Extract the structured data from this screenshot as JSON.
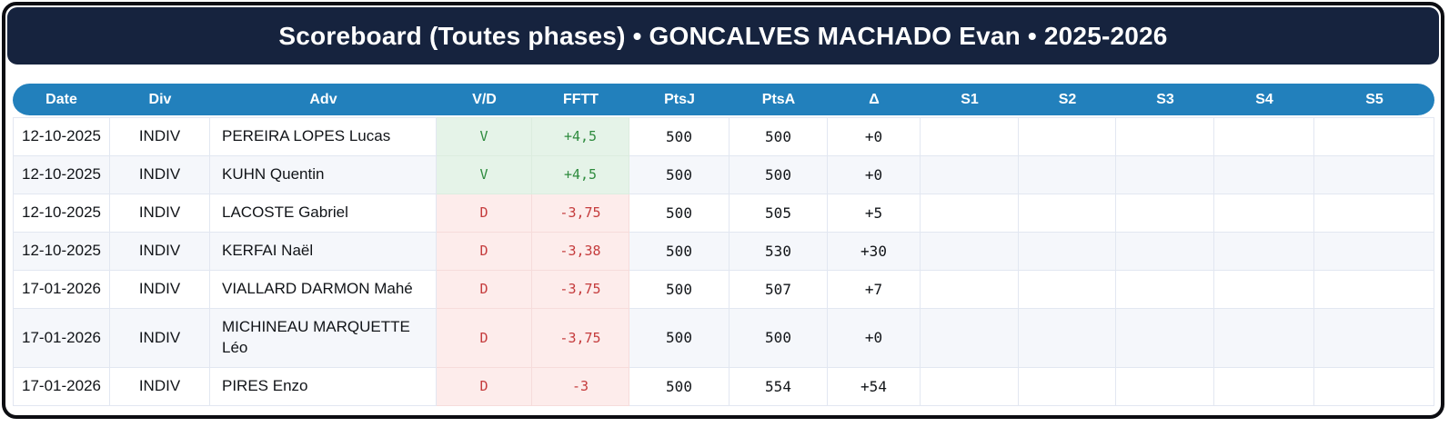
{
  "title": "Scoreboard (Toutes phases) • GONCALVES MACHADO Evan • 2025-2026",
  "colors": {
    "title_bar_bg": "#16233e",
    "header_bg": "#2280bc",
    "win_text": "#2e8b3e",
    "win_bg": "#e5f3e8",
    "loss_text": "#c53b3c",
    "loss_bg": "#fdeceb",
    "alt_row_bg": "#f5f7fb"
  },
  "table": {
    "columns": [
      {
        "key": "date",
        "label": "Date"
      },
      {
        "key": "div",
        "label": "Div"
      },
      {
        "key": "adv",
        "label": "Adv"
      },
      {
        "key": "vd",
        "label": "V/D"
      },
      {
        "key": "fftt",
        "label": "FFTT"
      },
      {
        "key": "ptsj",
        "label": "PtsJ"
      },
      {
        "key": "ptsa",
        "label": "PtsA"
      },
      {
        "key": "delta",
        "label": "Δ"
      },
      {
        "key": "s1",
        "label": "S1"
      },
      {
        "key": "s2",
        "label": "S2"
      },
      {
        "key": "s3",
        "label": "S3"
      },
      {
        "key": "s4",
        "label": "S4"
      },
      {
        "key": "s5",
        "label": "S5"
      }
    ],
    "rows": [
      {
        "date": "12-10-2025",
        "div": "INDIV",
        "adv": "PEREIRA LOPES Lucas",
        "vd": "V",
        "fftt": "+4,5",
        "ptsj": "500",
        "ptsa": "500",
        "delta": "+0",
        "s1": "",
        "s2": "",
        "s3": "",
        "s4": "",
        "s5": "",
        "result": "win"
      },
      {
        "date": "12-10-2025",
        "div": "INDIV",
        "adv": "KUHN Quentin",
        "vd": "V",
        "fftt": "+4,5",
        "ptsj": "500",
        "ptsa": "500",
        "delta": "+0",
        "s1": "",
        "s2": "",
        "s3": "",
        "s4": "",
        "s5": "",
        "result": "win"
      },
      {
        "date": "12-10-2025",
        "div": "INDIV",
        "adv": "LACOSTE Gabriel",
        "vd": "D",
        "fftt": "-3,75",
        "ptsj": "500",
        "ptsa": "505",
        "delta": "+5",
        "s1": "",
        "s2": "",
        "s3": "",
        "s4": "",
        "s5": "",
        "result": "loss"
      },
      {
        "date": "12-10-2025",
        "div": "INDIV",
        "adv": "KERFAI Naël",
        "vd": "D",
        "fftt": "-3,38",
        "ptsj": "500",
        "ptsa": "530",
        "delta": "+30",
        "s1": "",
        "s2": "",
        "s3": "",
        "s4": "",
        "s5": "",
        "result": "loss"
      },
      {
        "date": "17-01-2026",
        "div": "INDIV",
        "adv": "VIALLARD DARMON Mahé",
        "vd": "D",
        "fftt": "-3,75",
        "ptsj": "500",
        "ptsa": "507",
        "delta": "+7",
        "s1": "",
        "s2": "",
        "s3": "",
        "s4": "",
        "s5": "",
        "result": "loss"
      },
      {
        "date": "17-01-2026",
        "div": "INDIV",
        "adv": "MICHINEAU MARQUETTE Léo",
        "vd": "D",
        "fftt": "-3,75",
        "ptsj": "500",
        "ptsa": "500",
        "delta": "+0",
        "s1": "",
        "s2": "",
        "s3": "",
        "s4": "",
        "s5": "",
        "result": "loss"
      },
      {
        "date": "17-01-2026",
        "div": "INDIV",
        "adv": "PIRES Enzo",
        "vd": "D",
        "fftt": "-3",
        "ptsj": "500",
        "ptsa": "554",
        "delta": "+54",
        "s1": "",
        "s2": "",
        "s3": "",
        "s4": "",
        "s5": "",
        "result": "loss"
      }
    ]
  }
}
